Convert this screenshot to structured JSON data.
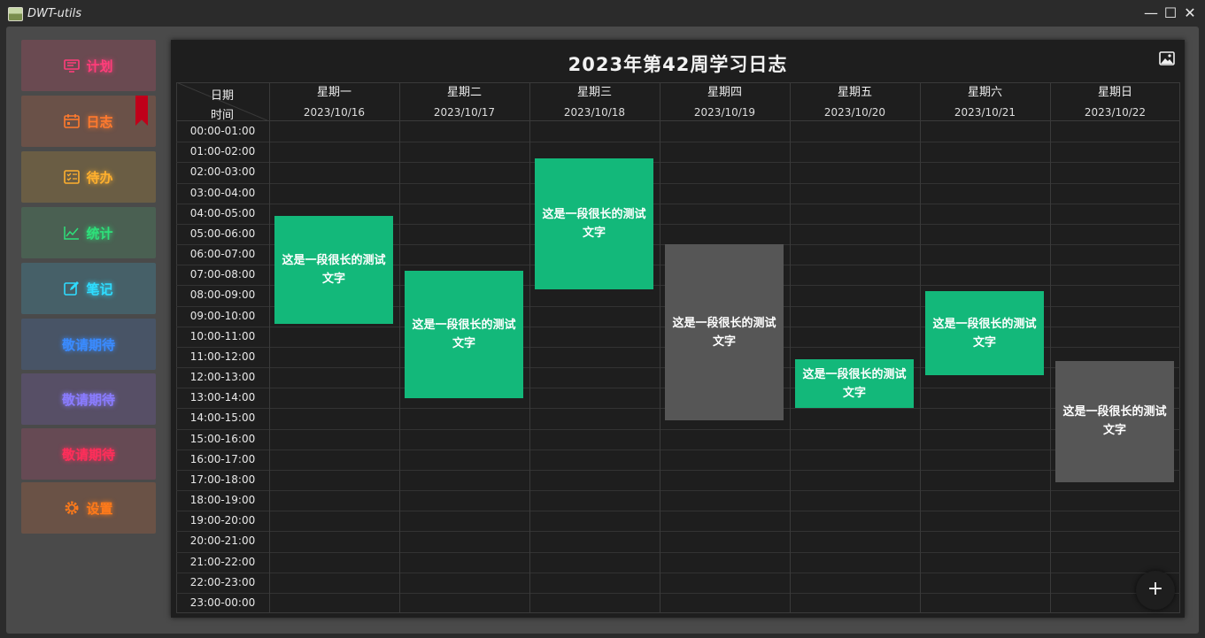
{
  "window": {
    "title": "DWT-utils",
    "controls": [
      "—",
      "☐",
      "✕"
    ]
  },
  "sidebar": {
    "items": [
      {
        "label": "计划",
        "icon": "monitor-icon",
        "color": "#ff3d7a",
        "bg": "#6a4a51"
      },
      {
        "label": "日志",
        "icon": "calendar-icon",
        "color": "#ff7a2e",
        "bg": "#6a5148",
        "active": true
      },
      {
        "label": "待办",
        "icon": "checklist-icon",
        "color": "#ffb02e",
        "bg": "#6a5d44"
      },
      {
        "label": "统计",
        "icon": "line-chart-icon",
        "color": "#2ee07a",
        "bg": "#4a6052"
      },
      {
        "label": "笔记",
        "icon": "edit-icon",
        "color": "#2edcff",
        "bg": "#466068"
      },
      {
        "label": "敬请期待",
        "icon": "",
        "color": "#3a8bff",
        "bg": "#485466"
      },
      {
        "label": "敬请期待",
        "icon": "",
        "color": "#8a7cff",
        "bg": "#574f66"
      },
      {
        "label": "敬请期待",
        "icon": "",
        "color": "#ff2e5a",
        "bg": "#664a54"
      },
      {
        "label": "设置",
        "icon": "gear-icon",
        "color": "#ff7a1a",
        "bg": "#6a5246"
      }
    ]
  },
  "schedule": {
    "title": "2023年第42周学习日志",
    "corner": {
      "top": "日期",
      "bottom": "时间"
    },
    "days": [
      {
        "name": "星期一",
        "date": "2023/10/16"
      },
      {
        "name": "星期二",
        "date": "2023/10/17"
      },
      {
        "name": "星期三",
        "date": "2023/10/18"
      },
      {
        "name": "星期四",
        "date": "2023/10/19"
      },
      {
        "name": "星期五",
        "date": "2023/10/20"
      },
      {
        "name": "星期六",
        "date": "2023/10/21"
      },
      {
        "name": "星期日",
        "date": "2023/10/22"
      }
    ],
    "times": [
      "00:00-01:00",
      "01:00-02:00",
      "02:00-03:00",
      "03:00-04:00",
      "04:00-05:00",
      "05:00-06:00",
      "06:00-07:00",
      "07:00-08:00",
      "08:00-09:00",
      "09:00-10:00",
      "10:00-11:00",
      "11:00-12:00",
      "12:00-13:00",
      "13:00-14:00",
      "14:00-15:00",
      "15:00-16:00",
      "16:00-17:00",
      "17:00-18:00",
      "18:00-19:00",
      "19:00-20:00",
      "20:00-21:00",
      "21:00-22:00",
      "22:00-23:00",
      "23:00-00:00"
    ],
    "events": [
      {
        "day": 0,
        "start": 4.6,
        "end": 9.9,
        "text": "这是一段很长的测试文字",
        "color": "#13b87a"
      },
      {
        "day": 1,
        "start": 7.3,
        "end": 13.5,
        "text": "这是一段很长的测试文字",
        "color": "#13b87a"
      },
      {
        "day": 2,
        "start": 1.8,
        "end": 8.2,
        "text": "这是一段很长的测试文字",
        "color": "#13b87a"
      },
      {
        "day": 3,
        "start": 6.0,
        "end": 14.6,
        "text": "这是一段很长的测试文字",
        "color": "#565656"
      },
      {
        "day": 4,
        "start": 11.6,
        "end": 14.0,
        "text": "这是一段很长的测试文字",
        "color": "#13b87a"
      },
      {
        "day": 5,
        "start": 8.3,
        "end": 12.4,
        "text": "这是一段很长的测试文字",
        "color": "#13b87a"
      },
      {
        "day": 6,
        "start": 11.7,
        "end": 17.6,
        "text": "这是一段很长的测试文字",
        "color": "#565656"
      }
    ],
    "add_button": "+"
  }
}
